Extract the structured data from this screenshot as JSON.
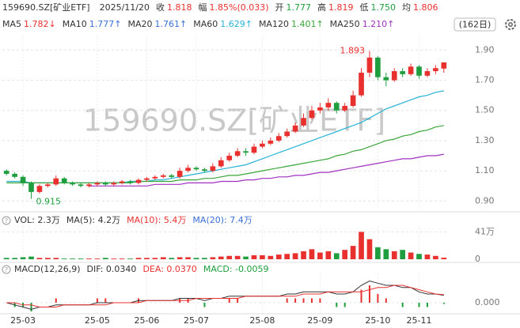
{
  "header": {
    "title": "159690.SZ[矿业ETF]",
    "date": "2025/11/20",
    "quotes": [
      {
        "label": "收",
        "value": "1.818",
        "color": "#e8312f"
      },
      {
        "label": "幅",
        "value": "1.85%(0.033)",
        "color": "#e8312f"
      },
      {
        "label": "开",
        "value": "1.777",
        "color": "#1e9e3e"
      },
      {
        "label": "高",
        "value": "1.819",
        "color": "#e8312f"
      },
      {
        "label": "低",
        "value": "1.750",
        "color": "#1e9e3e"
      },
      {
        "label": "均",
        "value": "1.806",
        "color": "#e8312f"
      }
    ],
    "ma_legend": [
      {
        "name": "MA5",
        "value": "1.782↓",
        "color": "#e8312f"
      },
      {
        "name": "MA10",
        "value": "1.777↑",
        "color": "#3b6fd8"
      },
      {
        "name": "MA20",
        "value": "1.761↑",
        "color": "#3b6fd8"
      }
    ],
    "period": "(162日)"
  },
  "chart_data": [
    {
      "type": "candlestick",
      "categories": [
        null,
        null,
        "25-03",
        null,
        null,
        null,
        null,
        null,
        null,
        null,
        null,
        "25-05",
        null,
        null,
        null,
        null,
        null,
        "25-06",
        null,
        null,
        null,
        null,
        null,
        "25-07",
        null,
        null,
        null,
        null,
        null,
        null,
        null,
        "25-08",
        null,
        null,
        null,
        null,
        null,
        null,
        "25-09",
        null,
        null,
        null,
        null,
        null,
        null,
        "25-10",
        null,
        null,
        null,
        null,
        "25-11",
        null,
        null,
        null
      ],
      "open": [
        1.1,
        1.08,
        1.06,
        1.02,
        0.96,
        1.0,
        1.01,
        1.05,
        1.02,
        1.01,
        1.0,
        1.01,
        1.02,
        1.01,
        1.02,
        1.03,
        1.02,
        1.04,
        1.05,
        1.06,
        1.07,
        1.06,
        1.1,
        1.12,
        1.11,
        1.1,
        1.13,
        1.17,
        1.2,
        1.23,
        1.22,
        1.26,
        1.28,
        1.3,
        1.33,
        1.36,
        1.4,
        1.45,
        1.5,
        1.52,
        1.55,
        1.5,
        1.53,
        1.6,
        1.75,
        1.85,
        1.72,
        1.7,
        1.76,
        1.74,
        1.79,
        1.73,
        1.76,
        1.777
      ],
      "high": [
        1.11,
        1.09,
        1.07,
        1.03,
        1.01,
        1.02,
        1.07,
        1.06,
        1.03,
        1.02,
        1.02,
        1.03,
        1.03,
        1.03,
        1.04,
        1.04,
        1.05,
        1.06,
        1.07,
        1.08,
        1.08,
        1.12,
        1.14,
        1.13,
        1.12,
        1.15,
        1.19,
        1.22,
        1.25,
        1.25,
        1.28,
        1.3,
        1.32,
        1.35,
        1.38,
        1.42,
        1.48,
        1.53,
        1.55,
        1.58,
        1.56,
        1.55,
        1.63,
        1.78,
        1.893,
        1.86,
        1.75,
        1.78,
        1.78,
        1.81,
        1.8,
        1.78,
        1.8,
        1.819
      ],
      "low": [
        1.07,
        1.05,
        1.0,
        0.915,
        0.95,
        0.99,
        1.0,
        1.01,
        1.0,
        0.99,
        0.99,
        1.0,
        1.0,
        1.0,
        1.01,
        1.01,
        1.01,
        1.03,
        1.04,
        1.05,
        1.05,
        1.05,
        1.09,
        1.1,
        1.09,
        1.09,
        1.12,
        1.16,
        1.19,
        1.2,
        1.21,
        1.25,
        1.27,
        1.29,
        1.32,
        1.35,
        1.39,
        1.44,
        1.48,
        1.5,
        1.48,
        1.49,
        1.52,
        1.59,
        1.72,
        1.7,
        1.66,
        1.69,
        1.72,
        1.73,
        1.71,
        1.72,
        1.74,
        1.75
      ],
      "close": [
        1.08,
        1.06,
        1.02,
        0.96,
        1.0,
        1.01,
        1.05,
        1.02,
        1.01,
        1.0,
        1.01,
        1.02,
        1.01,
        1.02,
        1.03,
        1.02,
        1.04,
        1.05,
        1.06,
        1.07,
        1.06,
        1.1,
        1.12,
        1.11,
        1.1,
        1.13,
        1.17,
        1.2,
        1.23,
        1.22,
        1.26,
        1.28,
        1.3,
        1.33,
        1.36,
        1.4,
        1.45,
        1.5,
        1.52,
        1.55,
        1.5,
        1.53,
        1.6,
        1.75,
        1.85,
        1.72,
        1.7,
        1.76,
        1.74,
        1.79,
        1.73,
        1.76,
        1.78,
        1.818
      ],
      "up_color": "#e8312f",
      "down_color": "#1e9e3e",
      "series": [
        {
          "name": "MA60",
          "label": "1.629↑",
          "color": "#27b3d6",
          "values": [
            1.03,
            1.03,
            1.03,
            1.02,
            1.02,
            1.02,
            1.02,
            1.02,
            1.02,
            1.02,
            1.02,
            1.02,
            1.02,
            1.02,
            1.02,
            1.03,
            1.03,
            1.03,
            1.04,
            1.04,
            1.05,
            1.06,
            1.07,
            1.08,
            1.09,
            1.1,
            1.11,
            1.12,
            1.13,
            1.14,
            1.16,
            1.18,
            1.2,
            1.22,
            1.24,
            1.26,
            1.28,
            1.3,
            1.32,
            1.34,
            1.36,
            1.38,
            1.4,
            1.42,
            1.45,
            1.48,
            1.51,
            1.53,
            1.55,
            1.57,
            1.59,
            1.6,
            1.62,
            1.63
          ]
        },
        {
          "name": "MA120",
          "label": "1.401↑",
          "color": "#3aa63a",
          "values": [
            1.02,
            1.02,
            1.02,
            1.02,
            1.02,
            1.02,
            1.02,
            1.02,
            1.02,
            1.02,
            1.02,
            1.02,
            1.02,
            1.02,
            1.02,
            1.02,
            1.03,
            1.03,
            1.03,
            1.03,
            1.03,
            1.04,
            1.04,
            1.04,
            1.05,
            1.05,
            1.06,
            1.07,
            1.07,
            1.08,
            1.09,
            1.1,
            1.11,
            1.12,
            1.13,
            1.14,
            1.15,
            1.16,
            1.17,
            1.18,
            1.2,
            1.21,
            1.23,
            1.24,
            1.26,
            1.28,
            1.3,
            1.31,
            1.33,
            1.34,
            1.36,
            1.37,
            1.39,
            1.4
          ]
        },
        {
          "name": "MA250",
          "label": "1.210↑",
          "color": "#a030c0",
          "values": [
            null,
            null,
            null,
            null,
            null,
            null,
            null,
            null,
            null,
            null,
            1.0,
            1.0,
            1.0,
            1.0,
            1.0,
            1.0,
            1.0,
            1.0,
            1.01,
            1.01,
            1.01,
            1.01,
            1.02,
            1.02,
            1.02,
            1.02,
            1.03,
            1.03,
            1.03,
            1.04,
            1.04,
            1.05,
            1.05,
            1.06,
            1.06,
            1.07,
            1.07,
            1.08,
            1.09,
            1.09,
            1.1,
            1.11,
            1.12,
            1.13,
            1.14,
            1.15,
            1.16,
            1.17,
            1.18,
            1.18,
            1.19,
            1.2,
            1.2,
            1.21
          ]
        }
      ],
      "ylim": [
        0.86,
        1.98
      ],
      "yticks": [
        {
          "value": 1.9,
          "label": "1.90"
        },
        {
          "value": 1.7,
          "label": "1.70"
        },
        {
          "value": 1.5,
          "label": "1.50"
        },
        {
          "value": 1.3,
          "label": "1.30"
        },
        {
          "value": 1.1,
          "label": "1.10"
        },
        {
          "value": 0.9,
          "label": "0.90"
        }
      ],
      "grid": true
    },
    {
      "type": "bar",
      "legend": [
        {
          "text": "VOL: 2.3万",
          "color": "#333333"
        },
        {
          "text": "MA(5): 4.2万",
          "color": "#333333"
        },
        {
          "text": "MA(10): 5.4万",
          "color": "#e8312f"
        },
        {
          "text": "MA(20): 7.4万",
          "color": "#3b6fd8"
        }
      ],
      "values": [
        2,
        2,
        3,
        4,
        2,
        2,
        2,
        1,
        1,
        1,
        1,
        1,
        2,
        1,
        1,
        1,
        2,
        2,
        2,
        3,
        2,
        3,
        3,
        2,
        2,
        3,
        4,
        5,
        5,
        4,
        6,
        6,
        5,
        7,
        8,
        9,
        12,
        15,
        10,
        12,
        9,
        14,
        20,
        41,
        30,
        18,
        15,
        12,
        14,
        10,
        8,
        7,
        5,
        2.3
      ],
      "ylim": [
        0,
        45
      ],
      "yticks": [
        {
          "value": 41,
          "label": "41万"
        },
        0
      ]
    },
    {
      "type": "macd",
      "legend": [
        {
          "text": "MACD(12,26,9)",
          "color": "#333333"
        },
        {
          "text": "DIF: 0.0340",
          "color": "#333333"
        },
        {
          "text": "DEA: 0.0370",
          "color": "#e8312f"
        },
        {
          "text": "MACD: -0.0059",
          "color": "#1e9e3e"
        }
      ],
      "series": [
        {
          "name": "DIF",
          "color": "#333333",
          "values": [
            0.0,
            -0.01,
            -0.02,
            -0.03,
            -0.02,
            -0.02,
            -0.01,
            -0.01,
            -0.01,
            -0.01,
            -0.01,
            0.0,
            0.0,
            0.0,
            0.0,
            0.0,
            0.01,
            0.01,
            0.01,
            0.01,
            0.01,
            0.02,
            0.02,
            0.02,
            0.01,
            0.02,
            0.02,
            0.03,
            0.03,
            0.03,
            0.03,
            0.03,
            0.03,
            0.03,
            0.04,
            0.04,
            0.05,
            0.05,
            0.05,
            0.05,
            0.04,
            0.04,
            0.05,
            0.08,
            0.1,
            0.09,
            0.08,
            0.08,
            0.07,
            0.07,
            0.05,
            0.04,
            0.04,
            0.034
          ]
        },
        {
          "name": "DEA",
          "color": "#e8312f",
          "values": [
            0.0,
            0.0,
            -0.01,
            -0.01,
            -0.02,
            -0.02,
            -0.02,
            -0.01,
            -0.01,
            -0.01,
            -0.01,
            -0.01,
            -0.01,
            0.0,
            0.0,
            0.0,
            0.0,
            0.01,
            0.01,
            0.01,
            0.01,
            0.01,
            0.01,
            0.02,
            0.02,
            0.02,
            0.02,
            0.02,
            0.02,
            0.03,
            0.03,
            0.03,
            0.03,
            0.03,
            0.03,
            0.03,
            0.04,
            0.04,
            0.04,
            0.05,
            0.05,
            0.05,
            0.05,
            0.05,
            0.06,
            0.07,
            0.07,
            0.08,
            0.08,
            0.07,
            0.06,
            0.05,
            0.04,
            0.037
          ]
        }
      ],
      "values": [
        0,
        -0.02,
        -0.02,
        -0.04,
        0,
        0,
        0.02,
        0,
        0,
        0,
        0,
        0.02,
        0.02,
        0,
        0,
        0,
        0.02,
        0,
        0,
        0,
        0,
        0.02,
        0.02,
        0,
        -0.02,
        0,
        0,
        0.02,
        0.02,
        0,
        0,
        0,
        0,
        0,
        0.02,
        0.02,
        0.02,
        0.02,
        0.02,
        0,
        -0.02,
        -0.02,
        0,
        0.06,
        0.08,
        0.04,
        0.02,
        0,
        -0.02,
        0,
        -0.02,
        -0.02,
        0,
        -0.0059
      ],
      "ylim": [
        -0.04,
        0.12
      ],
      "yticks": [
        {
          "value": 0,
          "label": "0.000"
        }
      ]
    }
  ]
}
